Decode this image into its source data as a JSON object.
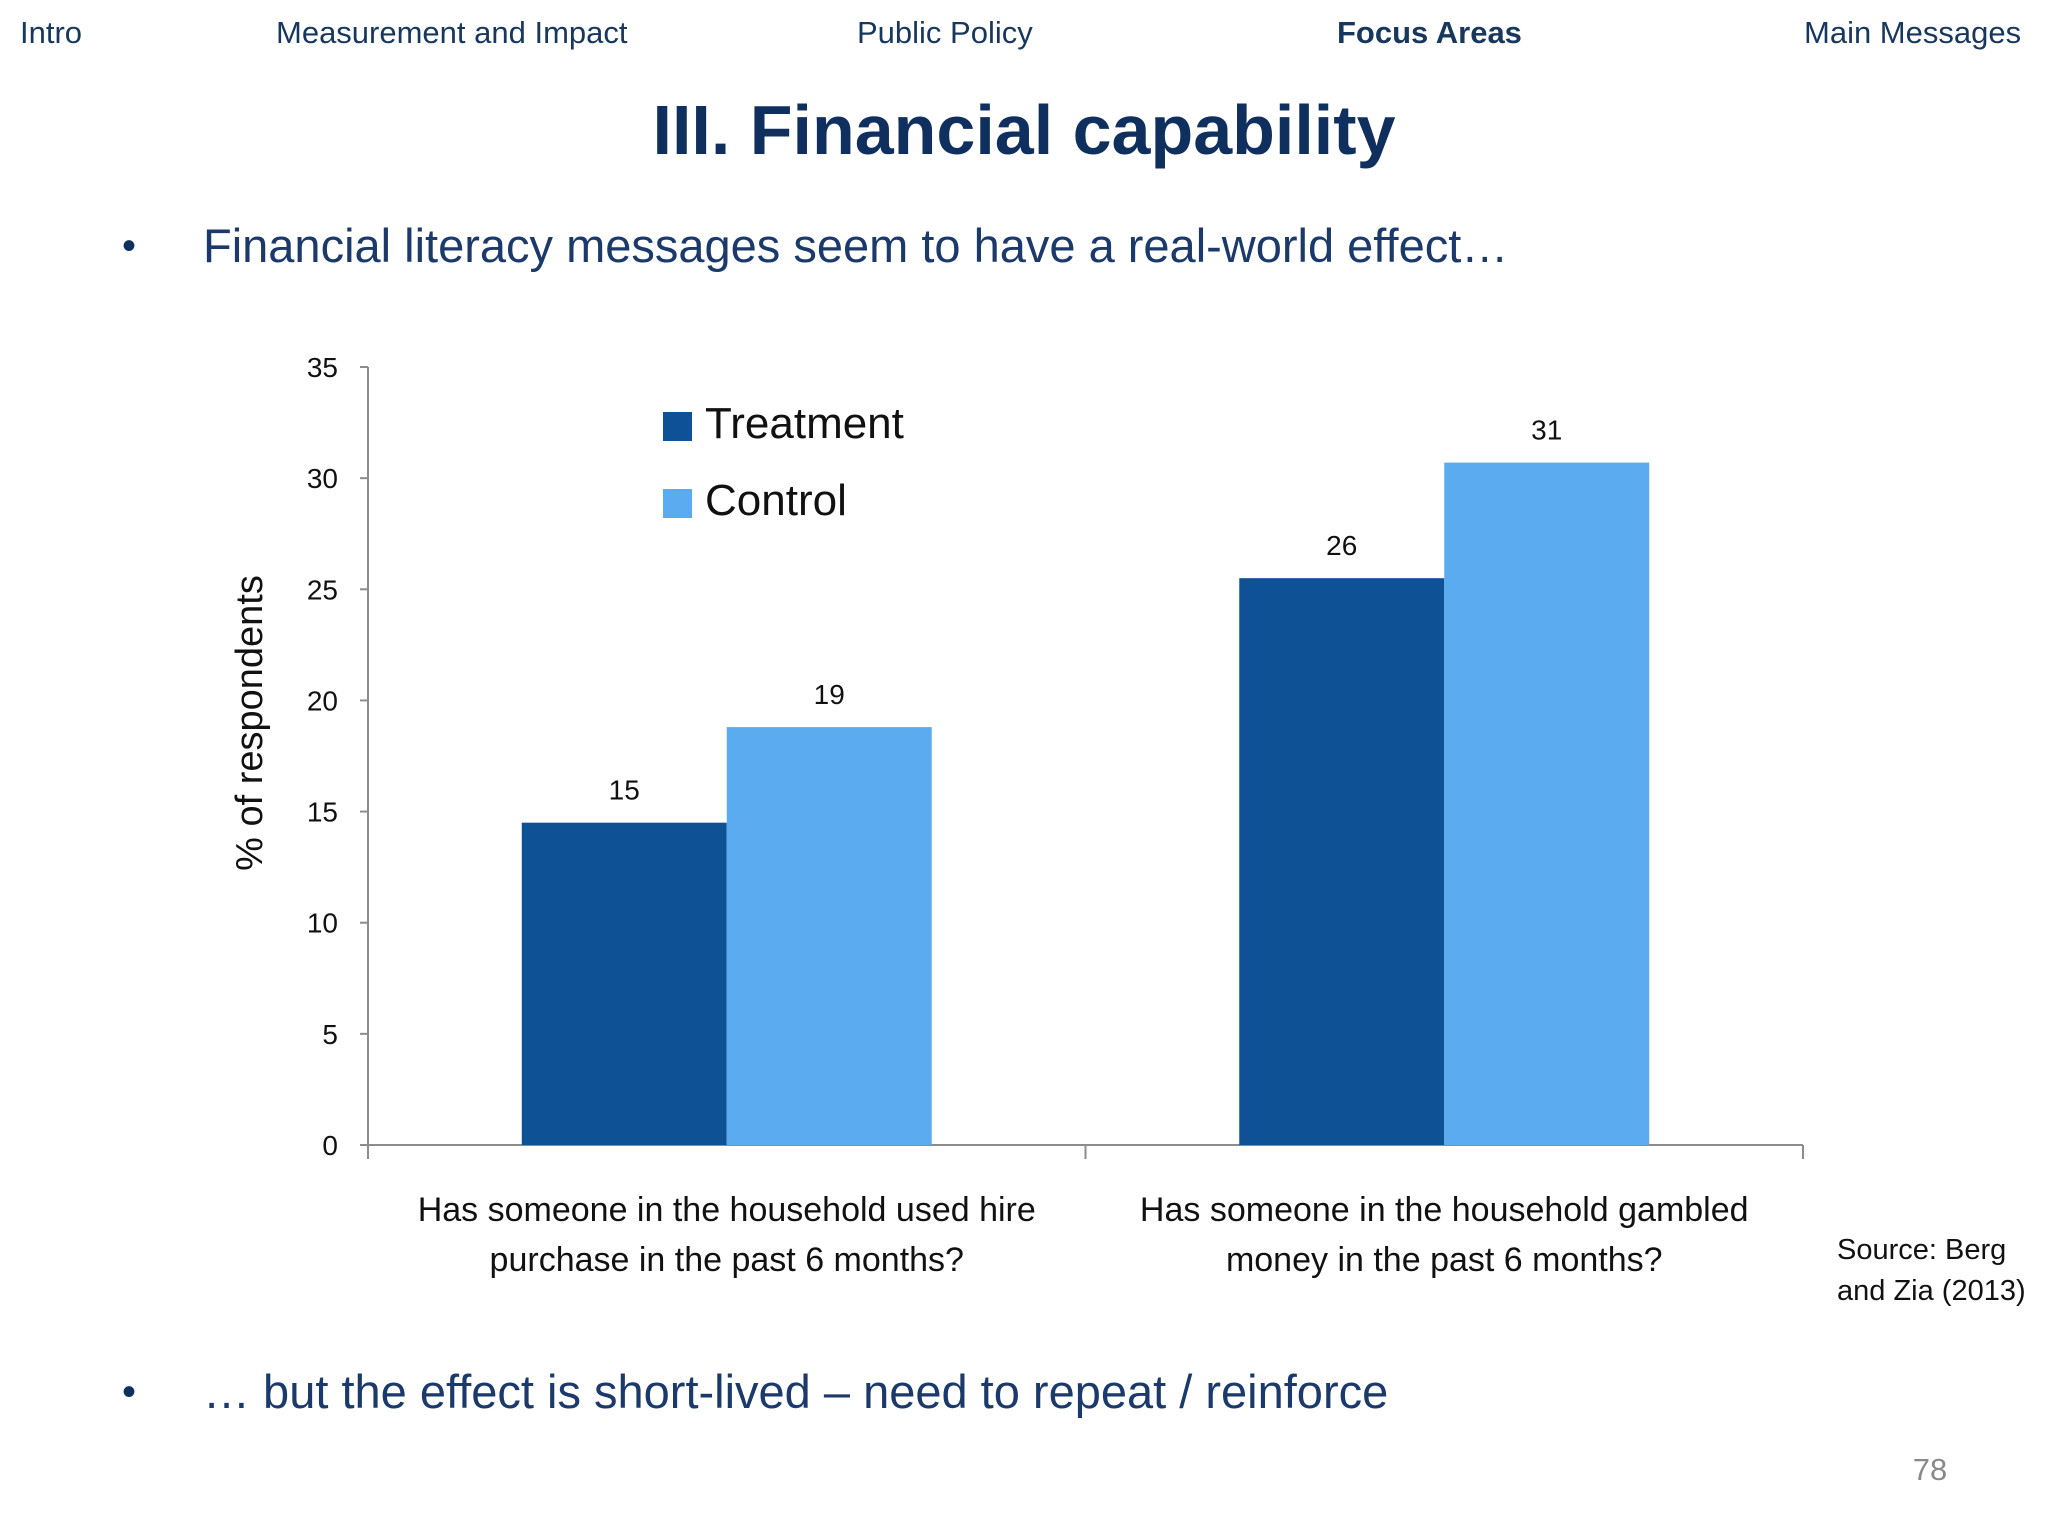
{
  "nav": {
    "items": [
      {
        "label": "Intro",
        "active": false
      },
      {
        "label": "Measurement and Impact",
        "active": false
      },
      {
        "label": "Public Policy",
        "active": false
      },
      {
        "label": "Focus Areas",
        "active": true
      },
      {
        "label": "Main Messages",
        "active": false
      }
    ]
  },
  "slide": {
    "title": "III. Financial capability",
    "bullet1": "Financial literacy messages seem to have a real-world effect…",
    "bullet2": "… but the effect is short-lived – need to repeat / reinforce",
    "source_line1": "Source: Berg",
    "source_line2": "and Zia (2013)",
    "page_number": "78"
  },
  "colors": {
    "treatment": "#0e5295",
    "control": "#5aabef",
    "text": "#0f2f5e"
  },
  "chart_data": {
    "type": "bar",
    "ylabel": "% of respondents",
    "xlabel": "",
    "ylim": [
      0,
      35
    ],
    "yticks": [
      0,
      5,
      10,
      15,
      20,
      25,
      30,
      35
    ],
    "grid": false,
    "legend_position": "top-left",
    "categories": [
      [
        "Has someone in the household used hire",
        "purchase in the past 6 months?"
      ],
      [
        "Has someone in the household gambled",
        "money in the past 6 months?"
      ]
    ],
    "series": [
      {
        "name": "Treatment",
        "values": [
          14.5,
          25.5
        ],
        "labels": [
          "15",
          "26"
        ]
      },
      {
        "name": "Control",
        "values": [
          18.8,
          30.7
        ],
        "labels": [
          "19",
          "31"
        ]
      }
    ]
  }
}
